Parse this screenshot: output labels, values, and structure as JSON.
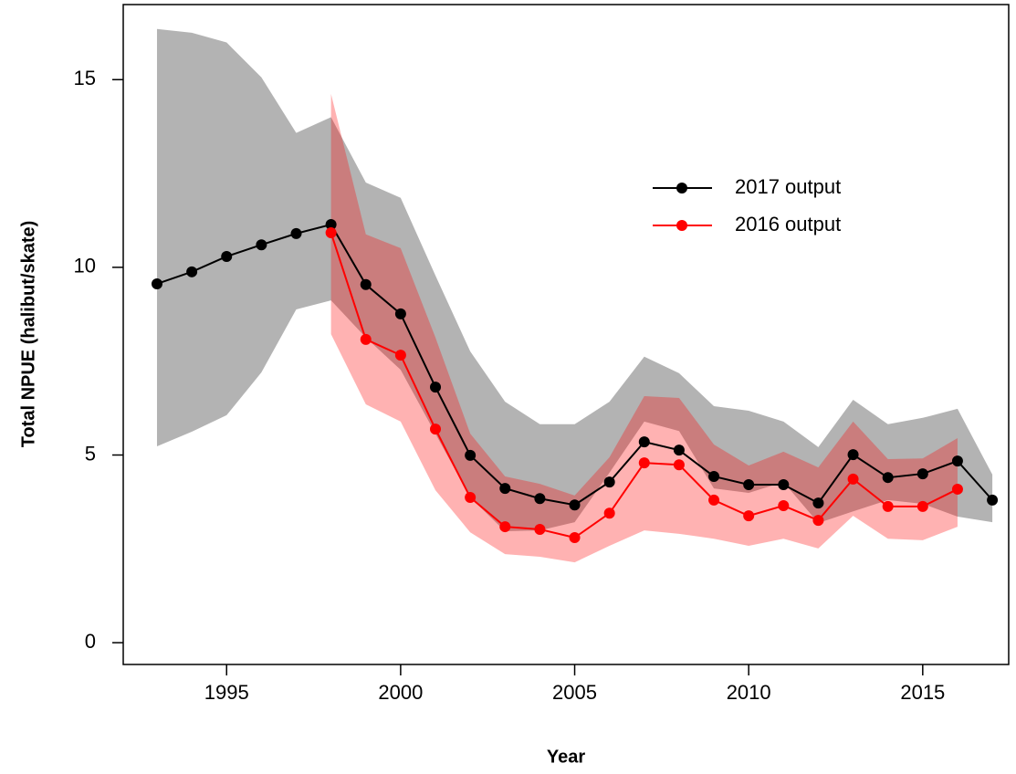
{
  "chart_data": {
    "type": "line",
    "xlabel": "Year",
    "ylabel": "Total NPUE (halibut/skate)",
    "x": [
      1993,
      1994,
      1995,
      1996,
      1997,
      1998,
      1999,
      2000,
      2001,
      2002,
      2003,
      2004,
      2005,
      2006,
      2007,
      2008,
      2009,
      2010,
      2011,
      2012,
      2013,
      2014,
      2015,
      2016,
      2017
    ],
    "series": [
      {
        "name": "2017 output",
        "color": "#000000",
        "band_color": "#b3b3b3",
        "values": [
          9.56,
          9.88,
          10.29,
          10.6,
          10.9,
          11.14,
          9.54,
          8.76,
          6.81,
          4.99,
          4.11,
          3.84,
          3.67,
          4.28,
          5.35,
          5.13,
          4.43,
          4.21,
          4.21,
          3.72,
          5.01,
          4.4,
          4.5,
          4.84,
          3.8
        ],
        "upper": [
          16.35,
          16.25,
          15.99,
          15.06,
          13.58,
          14.0,
          12.26,
          11.85,
          9.78,
          7.76,
          6.42,
          5.82,
          5.82,
          6.42,
          7.62,
          7.18,
          6.3,
          6.18,
          5.89,
          5.21,
          6.47,
          5.82,
          5.99,
          6.23,
          4.48
        ],
        "lower": [
          5.23,
          5.62,
          6.06,
          7.2,
          8.88,
          9.12,
          8.13,
          7.27,
          5.57,
          3.87,
          2.97,
          2.99,
          3.21,
          4.53,
          5.89,
          5.64,
          4.11,
          3.99,
          4.28,
          3.19,
          3.5,
          3.8,
          3.7,
          3.36,
          3.21
        ]
      },
      {
        "name": "2016 output",
        "color": "#ff0000",
        "band_color": "#ff0000",
        "values": [
          null,
          null,
          null,
          null,
          null,
          10.92,
          8.08,
          7.66,
          5.69,
          3.87,
          3.09,
          3.02,
          2.8,
          3.45,
          4.79,
          4.74,
          3.8,
          3.38,
          3.65,
          3.26,
          4.36,
          3.63,
          3.63,
          4.09,
          null
        ],
        "upper": [
          null,
          null,
          null,
          null,
          null,
          14.62,
          10.88,
          10.51,
          8.13,
          5.57,
          4.43,
          4.23,
          3.92,
          4.94,
          6.57,
          6.52,
          5.28,
          4.72,
          5.09,
          4.67,
          5.89,
          4.89,
          4.91,
          5.45,
          null
        ],
        "lower": [
          null,
          null,
          null,
          null,
          null,
          8.22,
          6.35,
          5.89,
          4.06,
          2.94,
          2.36,
          2.29,
          2.14,
          2.58,
          2.99,
          2.9,
          2.77,
          2.58,
          2.77,
          2.51,
          3.38,
          2.77,
          2.73,
          3.09,
          null
        ]
      }
    ],
    "xlim": [
      1992.03,
      2017.47
    ],
    "ylim": [
      -0.58,
      17.0
    ],
    "xticks": [
      1995,
      2000,
      2005,
      2010,
      2015
    ],
    "yticks": [
      0,
      5,
      10,
      15
    ],
    "grid": false,
    "legend": "upper-right"
  }
}
